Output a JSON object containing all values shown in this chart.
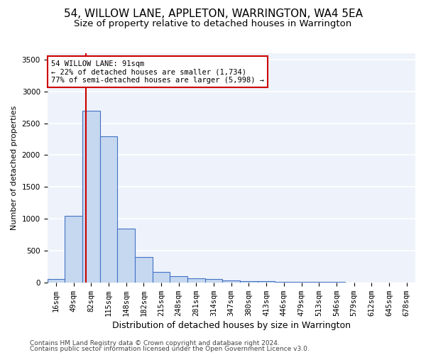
{
  "title": "54, WILLOW LANE, APPLETON, WARRINGTON, WA4 5EA",
  "subtitle": "Size of property relative to detached houses in Warrington",
  "xlabel": "Distribution of detached houses by size in Warrington",
  "ylabel": "Number of detached properties",
  "categories": [
    "16sqm",
    "49sqm",
    "82sqm",
    "115sqm",
    "148sqm",
    "182sqm",
    "215sqm",
    "248sqm",
    "281sqm",
    "314sqm",
    "347sqm",
    "380sqm",
    "413sqm",
    "446sqm",
    "479sqm",
    "513sqm",
    "546sqm",
    "579sqm",
    "612sqm",
    "645sqm",
    "678sqm"
  ],
  "values": [
    50,
    1050,
    2700,
    2300,
    850,
    400,
    170,
    100,
    70,
    50,
    30,
    20,
    20,
    10,
    8,
    5,
    4,
    3,
    2,
    2,
    1
  ],
  "bar_color": "#c5d8f0",
  "bar_edge_color": "#4472c4",
  "background_color": "#eef3fb",
  "grid_color": "#ffffff",
  "annotation_text": "54 WILLOW LANE: 91sqm\n← 22% of detached houses are smaller (1,734)\n77% of semi-detached houses are larger (5,998) →",
  "annotation_box_color": "#cc0000",
  "vline_x": 1.7,
  "vline_color": "#cc0000",
  "ylim": [
    0,
    3600
  ],
  "yticks": [
    0,
    500,
    1000,
    1500,
    2000,
    2500,
    3000,
    3500
  ],
  "footer1": "Contains HM Land Registry data © Crown copyright and database right 2024.",
  "footer2": "Contains public sector information licensed under the Open Government Licence v3.0.",
  "title_fontsize": 11,
  "subtitle_fontsize": 9.5,
  "xlabel_fontsize": 9,
  "ylabel_fontsize": 8,
  "tick_fontsize": 7.5,
  "footer_fontsize": 6.5
}
